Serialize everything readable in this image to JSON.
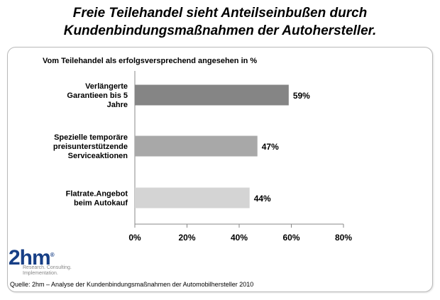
{
  "title": {
    "line1": "Freie Teilehandel  sieht Anteilseinbußen durch",
    "line2": "Kundenbindungsmaßnahmen  der Autohersteller."
  },
  "chart_data": {
    "type": "bar",
    "orientation": "horizontal",
    "title": "Vom Teilehandel als erfolgsversprechend angesehen  in %",
    "categories": [
      [
        "Verlängerte",
        "Garantieen bis 5",
        "Jahre"
      ],
      [
        "Spezielle temporäre",
        "preisunterstützende",
        "Serviceaktionen"
      ],
      [
        "Flatrate.Angebot",
        "beim Autokauf"
      ]
    ],
    "values": [
      59,
      47,
      44
    ],
    "value_labels": [
      "59%",
      "47%",
      "44%"
    ],
    "bar_colors": [
      "#858585",
      "#a8a8a8",
      "#d4d4d4"
    ],
    "xlim": [
      0,
      80
    ],
    "xticks": [
      0,
      20,
      40,
      60,
      80
    ],
    "xtick_labels": [
      "0%",
      "20%",
      "40%",
      "60%",
      "80%"
    ],
    "xlabel": "",
    "ylabel": "",
    "grid": false
  },
  "logo": {
    "main": "2hm",
    "mark": "®",
    "tagline": [
      "Research. Consulting.",
      "Implementation."
    ]
  },
  "source": "Quelle: 2hm – Analyse der Kundenbindungsmaßnahmen der Automobilhersteller 2010"
}
